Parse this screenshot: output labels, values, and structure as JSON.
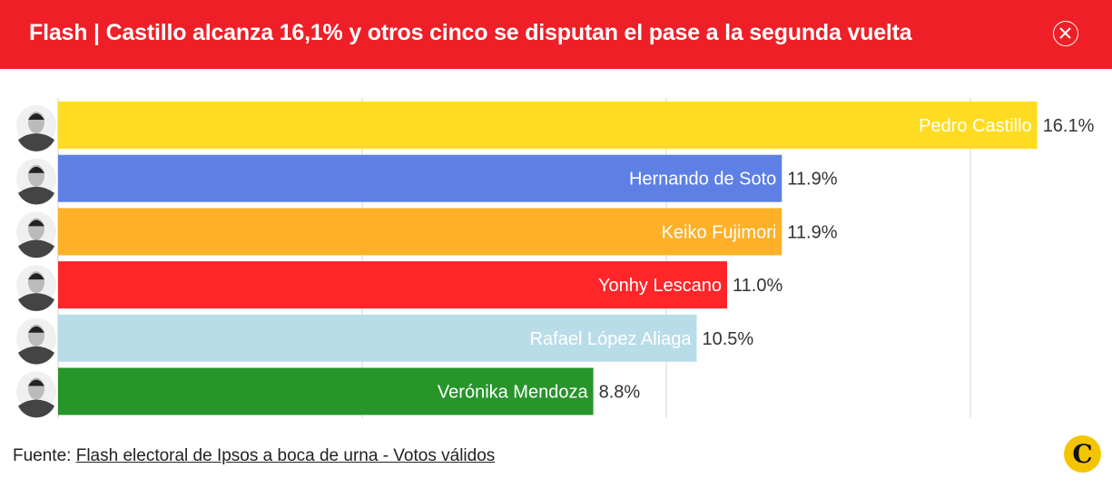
{
  "header": {
    "title": "Flash | Castillo alcanza 16,1% y otros cinco se disputan el pase a la segunda vuelta",
    "close_icon": "close-circle-icon"
  },
  "chart_data": {
    "type": "bar",
    "orientation": "horizontal",
    "categories": [
      "Pedro Castillo",
      "Hernando de Soto",
      "Keiko Fujimori",
      "Yonhy Lescano",
      "Rafael López Aliaga",
      "Verónika Mendoza"
    ],
    "values": [
      16.1,
      11.9,
      11.9,
      11.0,
      10.5,
      8.8
    ],
    "value_labels": [
      "16.1%",
      "11.9%",
      "11.9%",
      "11.0%",
      "10.5%",
      "8.8%"
    ],
    "colors": [
      "#ffdc22",
      "#5e7fe4",
      "#feb027",
      "#ff2528",
      "#b9dde8",
      "#26952a"
    ],
    "xlim": [
      0,
      17
    ],
    "gridlines": [
      5,
      10,
      15
    ],
    "grid": true
  },
  "footer": {
    "source_prefix": "Fuente: ",
    "source_link": "Flash electoral de Ipsos a boca de urna - Votos válidos",
    "logo": "El Comercio"
  }
}
